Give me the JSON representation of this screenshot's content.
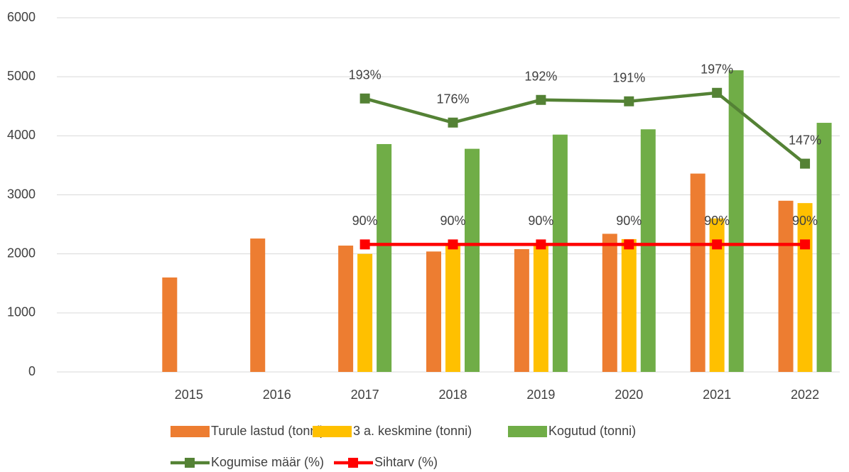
{
  "chart_data": {
    "type": "bar",
    "categories": [
      null,
      "2015",
      "2016",
      "2017",
      "2018",
      "2019",
      "2020",
      "2021",
      "2022"
    ],
    "ylim": [
      0,
      6000
    ],
    "yticks": [
      0,
      1000,
      2000,
      3000,
      4000,
      5000,
      6000
    ],
    "grid": true,
    "y2lim": [
      0,
      250
    ],
    "series": [
      {
        "name": "Turule lastud (tonni)",
        "type": "bar",
        "color": "#ED7D31",
        "values": [
          null,
          1600,
          2260,
          2140,
          2040,
          2080,
          2340,
          3360,
          2900
        ]
      },
      {
        "name": "3 a. keskmine (tonni)",
        "type": "bar",
        "color": "#FFC000",
        "values": [
          null,
          null,
          null,
          2000,
          2150,
          2160,
          2250,
          2600,
          2860
        ]
      },
      {
        "name": "Kogutud (tonni)",
        "type": "bar",
        "color": "#70AD47",
        "values": [
          null,
          null,
          null,
          3860,
          3780,
          4020,
          4110,
          5110,
          4220
        ]
      },
      {
        "name": "Kogumise määr (%)",
        "type": "line",
        "axis": "y2",
        "color": "#548235",
        "values": [
          null,
          null,
          null,
          193,
          176,
          192,
          191,
          197,
          147
        ],
        "value_labels": [
          null,
          null,
          null,
          "193%",
          "176%",
          "192%",
          "191%",
          "197%",
          "147%"
        ]
      },
      {
        "name": "Sihtarv (%)",
        "type": "line",
        "axis": "y2",
        "color": "#FF0000",
        "values": [
          null,
          null,
          null,
          90,
          90,
          90,
          90,
          90,
          90
        ],
        "value_labels": [
          null,
          null,
          null,
          "90%",
          "90%",
          "90%",
          "90%",
          "90%",
          "90%"
        ]
      }
    ]
  }
}
